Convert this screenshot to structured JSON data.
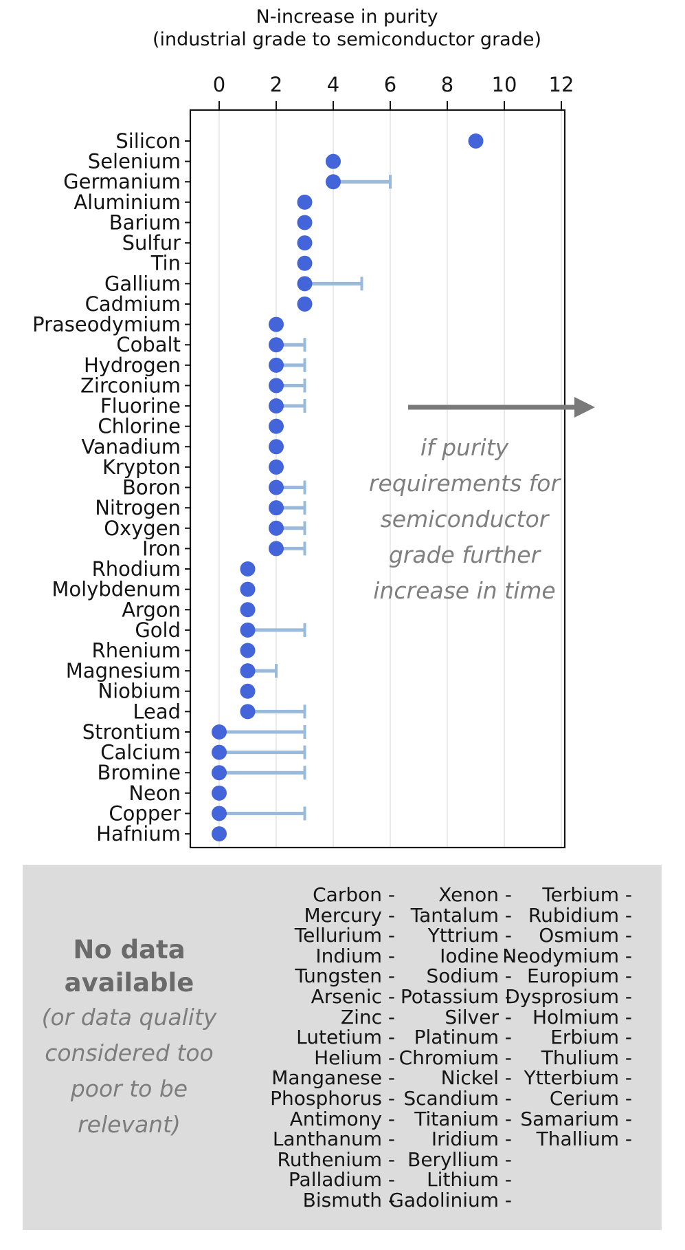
{
  "title": {
    "line1": "N-increase in purity",
    "line2": "(industrial grade to semiconductor grade)"
  },
  "chart_data": {
    "type": "scatter",
    "subtype": "horizontal-dot-plot-with-upper-error-bars",
    "title": "N-increase in purity (industrial grade to semiconductor grade)",
    "xlabel": "N-increase in purity",
    "ylabel": "",
    "xlim": [
      -1,
      12.1
    ],
    "xticks": [
      0,
      2,
      4,
      6,
      8,
      10,
      12
    ],
    "grid": true,
    "axis_position": "top",
    "points": [
      {
        "element": "Silicon",
        "value": 9,
        "upper": null
      },
      {
        "element": "Selenium",
        "value": 4,
        "upper": null
      },
      {
        "element": "Germanium",
        "value": 4,
        "upper": 6
      },
      {
        "element": "Aluminium",
        "value": 3,
        "upper": null
      },
      {
        "element": "Barium",
        "value": 3,
        "upper": null
      },
      {
        "element": "Sulfur",
        "value": 3,
        "upper": null
      },
      {
        "element": "Tin",
        "value": 3,
        "upper": null
      },
      {
        "element": "Gallium",
        "value": 3,
        "upper": 5
      },
      {
        "element": "Cadmium",
        "value": 3,
        "upper": null
      },
      {
        "element": "Praseodymium",
        "value": 2,
        "upper": null
      },
      {
        "element": "Cobalt",
        "value": 2,
        "upper": 3
      },
      {
        "element": "Hydrogen",
        "value": 2,
        "upper": 3
      },
      {
        "element": "Zirconium",
        "value": 2,
        "upper": 3
      },
      {
        "element": "Fluorine",
        "value": 2,
        "upper": 3
      },
      {
        "element": "Chlorine",
        "value": 2,
        "upper": null
      },
      {
        "element": "Vanadium",
        "value": 2,
        "upper": null
      },
      {
        "element": "Krypton",
        "value": 2,
        "upper": null
      },
      {
        "element": "Boron",
        "value": 2,
        "upper": 3
      },
      {
        "element": "Nitrogen",
        "value": 2,
        "upper": 3
      },
      {
        "element": "Oxygen",
        "value": 2,
        "upper": 3
      },
      {
        "element": "Iron",
        "value": 2,
        "upper": 3
      },
      {
        "element": "Rhodium",
        "value": 1,
        "upper": null
      },
      {
        "element": "Molybdenum",
        "value": 1,
        "upper": null
      },
      {
        "element": "Argon",
        "value": 1,
        "upper": null
      },
      {
        "element": "Gold",
        "value": 1,
        "upper": 3
      },
      {
        "element": "Rhenium",
        "value": 1,
        "upper": null
      },
      {
        "element": "Magnesium",
        "value": 1,
        "upper": 2
      },
      {
        "element": "Niobium",
        "value": 1,
        "upper": null
      },
      {
        "element": "Lead",
        "value": 1,
        "upper": 3
      },
      {
        "element": "Strontium",
        "value": 0,
        "upper": 3
      },
      {
        "element": "Calcium",
        "value": 0,
        "upper": 3
      },
      {
        "element": "Bromine",
        "value": 0,
        "upper": 3
      },
      {
        "element": "Neon",
        "value": 0,
        "upper": null
      },
      {
        "element": "Copper",
        "value": 0,
        "upper": 3
      },
      {
        "element": "Hafnium",
        "value": 0,
        "upper": null
      }
    ]
  },
  "annotation": {
    "icon": "right-arrow",
    "lines": [
      "if purity",
      "requirements for",
      "semiconductor",
      "grade further",
      "increase in time"
    ]
  },
  "no_data": {
    "heading": "No data available",
    "subheading": "(or data quality considered too poor to be relevant)",
    "tick_suffix": "-",
    "columns": [
      [
        "Carbon",
        "Mercury",
        "Tellurium",
        "Indium",
        "Tungsten",
        "Arsenic",
        "Zinc",
        "Lutetium",
        "Helium",
        "Manganese",
        "Phosphorus",
        "Antimony",
        "Lanthanum",
        "Ruthenium",
        "Palladium",
        "Bismuth"
      ],
      [
        "Xenon",
        "Tantalum",
        "Yttrium",
        "Iodine",
        "Sodium",
        "Potassium",
        "Silver",
        "Platinum",
        "Chromium",
        "Nickel",
        "Scandium",
        "Titanium",
        "Iridium",
        "Beryllium",
        "Lithium",
        "Gadolinium"
      ],
      [
        "Terbium",
        "Rubidium",
        "Osmium",
        "Neodymium",
        "Europium",
        "Dysprosium",
        "Holmium",
        "Erbium",
        "Thulium",
        "Ytterbium",
        "Cerium",
        "Samarium",
        "Thallium"
      ]
    ]
  },
  "colors": {
    "dot": "#4365d9",
    "error_bar": "#99badb",
    "grid": "#e4e4e4",
    "axis": "#141414",
    "annotation": "#7f7f7f",
    "arrow": "#7a7a7a",
    "box_bg": "#dcdcdc",
    "heading": "#6a6a6a",
    "subheading": "#7d7d7d"
  }
}
